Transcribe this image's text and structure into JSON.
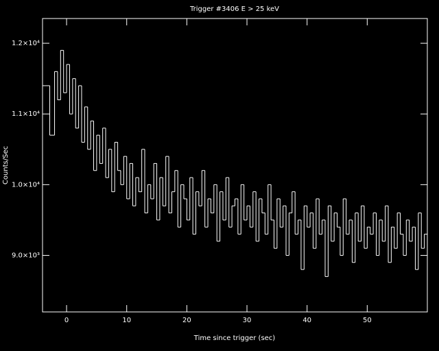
{
  "chart_data": {
    "type": "step",
    "title": "Trigger #3406 E > 25 keV",
    "xlabel": "Time since trigger (sec)",
    "ylabel": "Counts/Sec",
    "color": "#ffffff",
    "x": [
      -4,
      -2.8,
      -2,
      -1.5,
      -1,
      -0.5,
      0,
      0.5,
      1,
      1.5,
      2,
      2.5,
      3,
      3.5,
      4,
      4.5,
      5,
      5.5,
      6,
      6.5,
      7,
      7.5,
      8,
      8.5,
      9,
      9.5,
      10,
      10.5,
      11,
      11.5,
      12,
      12.5,
      13,
      13.5,
      14,
      14.5,
      15,
      15.5,
      16,
      16.5,
      17,
      17.5,
      18,
      18.5,
      19,
      19.5,
      20,
      20.5,
      21,
      21.5,
      22,
      22.5,
      23,
      23.5,
      24,
      24.5,
      25,
      25.5,
      26,
      26.5,
      27,
      27.5,
      28,
      28.5,
      29,
      29.5,
      30,
      30.5,
      31,
      31.5,
      32,
      32.5,
      33,
      33.5,
      34,
      34.5,
      35,
      35.5,
      36,
      36.5,
      37,
      37.5,
      38,
      38.5,
      39,
      39.5,
      40,
      40.5,
      41,
      41.5,
      42,
      42.5,
      43,
      43.5,
      44,
      44.5,
      45,
      45.5,
      46,
      46.5,
      47,
      47.5,
      48,
      48.5,
      49,
      49.5,
      50,
      50.5,
      51,
      51.5,
      52,
      52.5,
      53,
      53.5,
      54,
      54.5,
      55,
      55.5,
      56,
      56.5,
      57,
      57.5,
      58,
      58.5,
      59,
      59.5
    ],
    "values": [
      11400,
      10700,
      11600,
      11200,
      11900,
      11300,
      11700,
      11000,
      11500,
      10800,
      11400,
      10600,
      11100,
      10500,
      10900,
      10200,
      10700,
      10300,
      10800,
      10100,
      10500,
      9900,
      10600,
      10200,
      10000,
      10400,
      9800,
      10300,
      9700,
      10100,
      9900,
      10500,
      9600,
      10000,
      9800,
      10300,
      9500,
      10100,
      9700,
      10400,
      9600,
      9900,
      10200,
      9400,
      10000,
      9800,
      9500,
      10100,
      9300,
      9900,
      9700,
      10200,
      9400,
      9800,
      9600,
      10000,
      9200,
      9900,
      9500,
      10100,
      9400,
      9700,
      9800,
      9300,
      10000,
      9500,
      9700,
      9400,
      9900,
      9200,
      9800,
      9600,
      9300,
      10000,
      9500,
      9100,
      9800,
      9400,
      9700,
      9000,
      9600,
      9900,
      9300,
      9500,
      8800,
      9700,
      9400,
      9600,
      9100,
      9800,
      9300,
      9500,
      8700,
      9700,
      9200,
      9600,
      9400,
      9000,
      9800,
      9300,
      9500,
      8900,
      9600,
      9200,
      9700,
      9100,
      9400,
      9300,
      9600,
      9000,
      9500,
      9200,
      9700,
      8900,
      9400,
      9100,
      9600,
      9300,
      9000,
      9500,
      9200,
      9400,
      8800,
      9600,
      9100,
      9300
    ],
    "xlim": [
      -4,
      60
    ],
    "ylim": [
      8200,
      12350
    ],
    "xticks": [
      0,
      10,
      20,
      30,
      40,
      50
    ],
    "yticks": [
      {
        "value": 9000,
        "label": "9.0×10³"
      },
      {
        "value": 10000,
        "label": "1.0×10⁴"
      },
      {
        "value": 11000,
        "label": "1.1×10⁴"
      },
      {
        "value": 12000,
        "label": "1.2×10⁴"
      }
    ]
  }
}
